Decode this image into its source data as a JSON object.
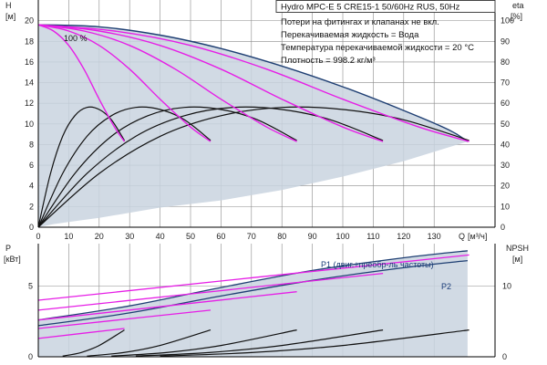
{
  "chart_data": [
    {
      "type": "line",
      "id": "qh",
      "title": "Hydro MPC-E 5 CRE15-1 50/60Hz RUS, 50Hz",
      "info_lines": [
        "Потери на фитингах и клапанах не вкл.",
        "Перекачиваемая жидкость = Вода",
        "Температура перекачиваемой жидкости = 20 °C",
        "Плотность = 998.2 кг/м³"
      ],
      "annotation": "100 %",
      "ylabel_left": "H",
      "ylabel_left_unit": "[м]",
      "ylabel_right": "eta",
      "ylabel_right_unit": "[%]",
      "xlabel": "Q",
      "xlabel_unit": "[м³/ч]",
      "xlim": [
        0,
        150
      ],
      "ylim": [
        0,
        22
      ],
      "y2lim": [
        0,
        110
      ],
      "xticks": [
        0,
        10,
        20,
        30,
        40,
        50,
        60,
        70,
        80,
        90,
        100,
        110,
        120,
        130
      ],
      "yticks": [
        0,
        2,
        4,
        6,
        8,
        10,
        12,
        14,
        16,
        18,
        20
      ],
      "y2ticks": [
        0,
        10,
        20,
        30,
        40,
        50,
        60,
        70,
        80,
        90,
        100
      ],
      "colors": {
        "envelope": "#1f3f73",
        "fill": "#c9d3df",
        "head_100": "#e61ee6",
        "efficiency": "#111111",
        "grid": "#8a8a8a"
      },
      "envelope": {
        "upper": {
          "x": [
            0,
            20,
            40,
            60,
            80,
            100,
            120,
            135,
            141
          ],
          "y": [
            19.6,
            19.4,
            18.6,
            17.3,
            15.6,
            13.6,
            11.3,
            9.4,
            8.3
          ]
        },
        "lower": {
          "x": [
            0,
            5,
            10,
            20,
            40,
            60,
            80,
            100,
            120,
            141
          ],
          "y": [
            0,
            0.3,
            0.5,
            0.9,
            1.9,
            2.6,
            3.6,
            4.9,
            6.4,
            8.3
          ]
        }
      },
      "series": [
        {
          "pumps": 1,
          "x": [
            0,
            5,
            10,
            15,
            20,
            25,
            28.3
          ],
          "y": [
            19.6,
            19.0,
            17.6,
            15.3,
            12.4,
            9.7,
            8.3
          ]
        },
        {
          "pumps": 2,
          "x": [
            0,
            10,
            20,
            30,
            40,
            50,
            56.6
          ],
          "y": [
            19.6,
            19.0,
            17.6,
            15.3,
            12.4,
            9.7,
            8.3
          ]
        },
        {
          "pumps": 3,
          "x": [
            0,
            15,
            30,
            45,
            60,
            75,
            84.9
          ],
          "y": [
            19.6,
            19.0,
            17.6,
            15.3,
            12.4,
            9.7,
            8.3
          ]
        },
        {
          "pumps": 4,
          "x": [
            0,
            20,
            40,
            60,
            80,
            100,
            113.2
          ],
          "y": [
            19.6,
            19.0,
            17.6,
            15.3,
            12.4,
            9.7,
            8.3
          ]
        },
        {
          "pumps": 5,
          "x": [
            0,
            25,
            50,
            75,
            100,
            125,
            141.5
          ],
          "y": [
            19.6,
            19.0,
            17.6,
            15.3,
            12.4,
            9.7,
            8.3
          ]
        }
      ],
      "efficiency_series": [
        {
          "x": [
            0,
            4,
            8,
            12,
            16,
            20,
            24,
            28.3
          ],
          "y": [
            0,
            26,
            44,
            54,
            58,
            57,
            52,
            42
          ]
        },
        {
          "x": [
            0,
            8,
            16,
            24,
            32,
            40,
            48,
            56.6
          ],
          "y": [
            0,
            26,
            44,
            54,
            58,
            57,
            52,
            42
          ]
        },
        {
          "x": [
            0,
            12,
            24,
            36,
            48,
            60,
            72,
            84.9
          ],
          "y": [
            0,
            26,
            44,
            54,
            58,
            57,
            52,
            42
          ]
        },
        {
          "x": [
            0,
            16,
            32,
            48,
            64,
            80,
            96,
            113.2
          ],
          "y": [
            0,
            26,
            44,
            54,
            58,
            57,
            52,
            42
          ]
        },
        {
          "x": [
            0,
            20,
            40,
            60,
            80,
            100,
            120,
            141.5
          ],
          "y": [
            0,
            26,
            44,
            54,
            58,
            57,
            52,
            42
          ]
        }
      ]
    },
    {
      "type": "line",
      "id": "power_npsh",
      "ylabel_left": "P",
      "ylabel_left_unit": "[кВт]",
      "ylabel_right": "NPSH",
      "ylabel_right_unit": "[м]",
      "xlim": [
        0,
        150
      ],
      "ylim": [
        0,
        8
      ],
      "y2lim": [
        0,
        16
      ],
      "yticks": [
        0,
        5
      ],
      "y2ticks": [
        0,
        10
      ],
      "series_labels": {
        "p1": "P1 (двиг.+преобр-ль частоты)",
        "p2": "P2"
      },
      "envelope_p1": {
        "x": [
          0,
          30,
          60,
          90,
          120,
          141
        ],
        "y": [
          2.6,
          3.6,
          4.9,
          6.1,
          7.0,
          7.5
        ]
      },
      "envelope_p2": {
        "x": [
          0,
          30,
          60,
          90,
          120,
          141
        ],
        "y": [
          2.2,
          3.1,
          4.3,
          5.4,
          6.3,
          6.8
        ]
      },
      "power_series": [
        {
          "x": [
            0,
            28.3
          ],
          "y": [
            1.3,
            2.0
          ]
        },
        {
          "x": [
            0,
            56.6
          ],
          "y": [
            2.0,
            3.3
          ]
        },
        {
          "x": [
            0,
            84.9
          ],
          "y": [
            2.6,
            4.6
          ]
        },
        {
          "x": [
            0,
            113.2
          ],
          "y": [
            3.3,
            5.9
          ]
        },
        {
          "x": [
            0,
            141.5
          ],
          "y": [
            4.0,
            7.2
          ]
        }
      ],
      "npsh_series": [
        {
          "x": [
            8,
            14,
            20,
            28.3
          ],
          "y": [
            0.1,
            0.6,
            1.6,
            3.8
          ]
        },
        {
          "x": [
            16,
            28,
            40,
            56.6
          ],
          "y": [
            0.1,
            0.6,
            1.6,
            3.8
          ]
        },
        {
          "x": [
            24,
            42,
            60,
            84.9
          ],
          "y": [
            0.1,
            0.6,
            1.6,
            3.8
          ]
        },
        {
          "x": [
            32,
            56,
            80,
            113.2
          ],
          "y": [
            0.1,
            0.6,
            1.6,
            3.8
          ]
        },
        {
          "x": [
            40,
            70,
            100,
            141.5
          ],
          "y": [
            0.1,
            0.6,
            1.6,
            3.8
          ]
        }
      ]
    }
  ]
}
